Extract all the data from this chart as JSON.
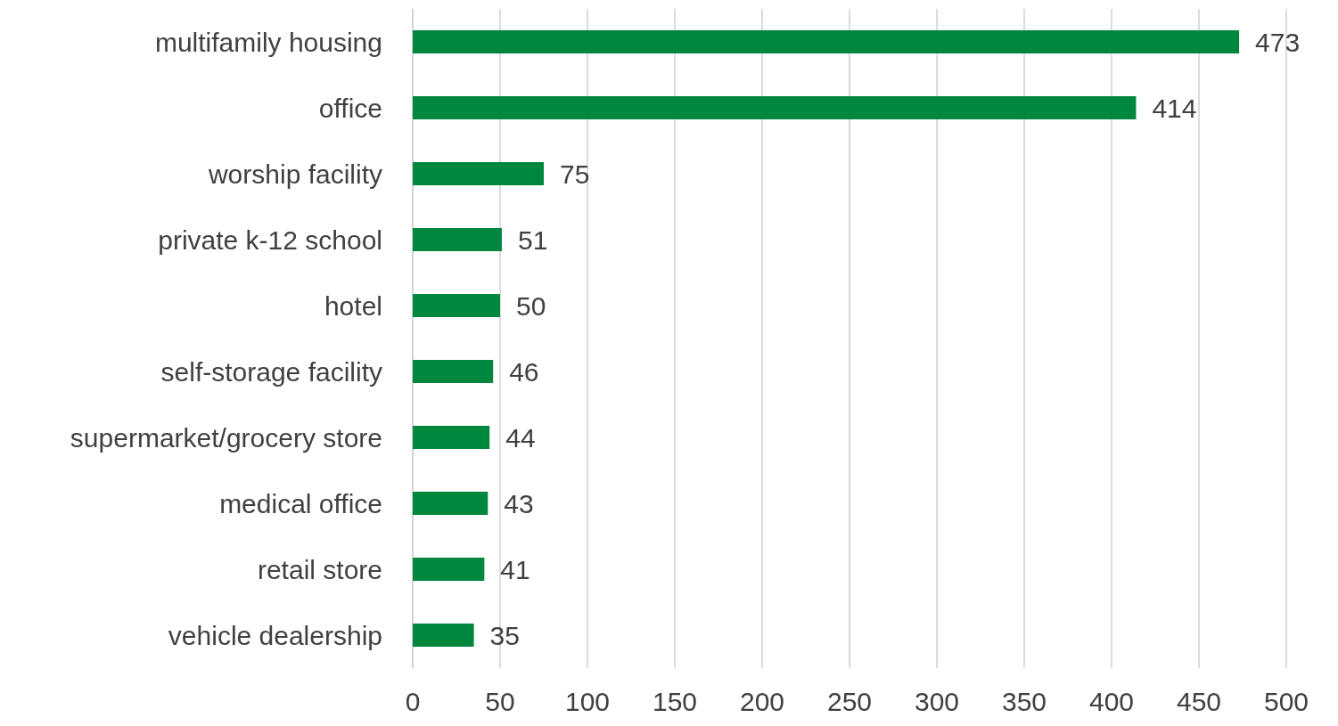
{
  "chart_data": {
    "type": "bar",
    "orientation": "horizontal",
    "categories": [
      "multifamily housing",
      "office",
      "worship facility",
      "private k-12 school",
      "hotel",
      "self-storage facility",
      "supermarket/grocery store",
      "medical office",
      "retail store",
      "vehicle dealership"
    ],
    "values": [
      473,
      414,
      75,
      51,
      50,
      46,
      44,
      43,
      41,
      35
    ],
    "color": "#00873e",
    "xlim": [
      0,
      500
    ],
    "xticks": [
      0,
      50,
      100,
      150,
      200,
      250,
      300,
      350,
      400,
      450,
      500
    ],
    "grid": "x",
    "data_labels": true
  }
}
